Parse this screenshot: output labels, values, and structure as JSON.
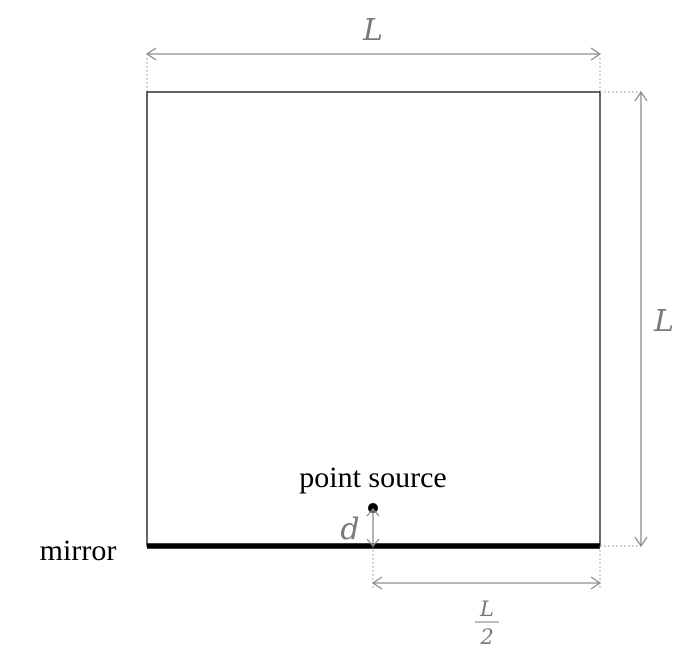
{
  "labels": {
    "top_dimension": "L",
    "right_dimension": "L",
    "bottom_dimension_num": "L",
    "bottom_dimension_den": "2",
    "offset_dimension": "d",
    "source_label": "point source",
    "mirror_label": "mirror"
  },
  "colors": {
    "dimension": "#8c8c8c",
    "outline": "#000000"
  }
}
